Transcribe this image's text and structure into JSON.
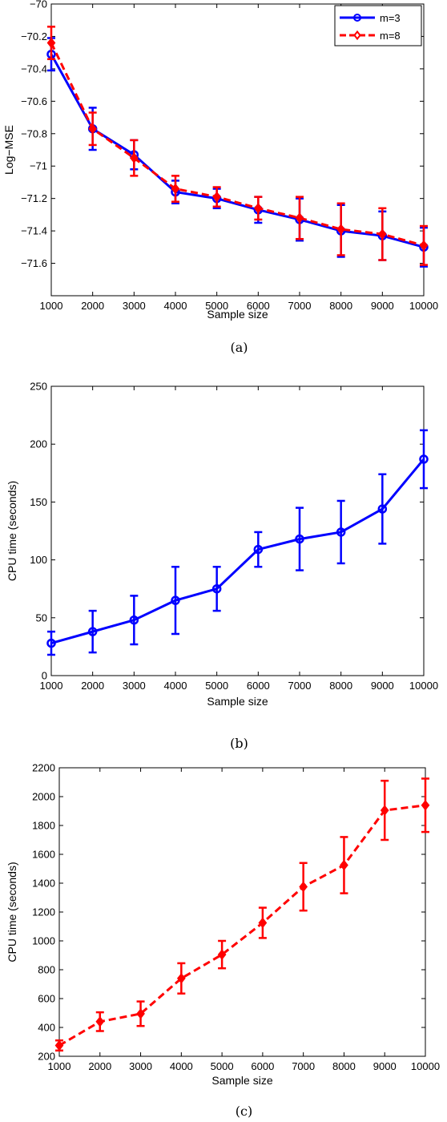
{
  "chart_data": [
    {
      "type": "line",
      "caption": "(a)",
      "xlabel": "Sample size",
      "ylabel": "Log−MSE",
      "xlim": [
        1000,
        10000
      ],
      "ylim": [
        -71.8,
        -70
      ],
      "xticks": [
        1000,
        2000,
        3000,
        4000,
        5000,
        6000,
        7000,
        8000,
        9000,
        10000
      ],
      "yticks": [
        -70,
        -70.2,
        -70.4,
        -70.6,
        -70.8,
        -71,
        -71.2,
        -71.4,
        -71.6
      ],
      "ytick_labels": [
        "−70",
        "−70.2",
        "−70.4",
        "−70.6",
        "−70.8",
        "−71",
        "−71.2",
        "−71.4",
        "−71.6"
      ],
      "grid": false,
      "legend": "top-right",
      "x": [
        1000,
        2000,
        3000,
        4000,
        5000,
        6000,
        7000,
        8000,
        9000,
        10000
      ],
      "series": [
        {
          "name": "m=3",
          "color": "#0000ff",
          "line": "solid",
          "marker": "circle",
          "values": [
            -70.31,
            -70.77,
            -70.93,
            -71.16,
            -71.2,
            -71.27,
            -71.33,
            -71.4,
            -71.43,
            -71.5
          ],
          "errors": [
            0.1,
            0.13,
            0.09,
            0.07,
            0.06,
            0.08,
            0.13,
            0.16,
            0.15,
            0.12
          ]
        },
        {
          "name": "m=8",
          "color": "#ff0000",
          "line": "dashed",
          "marker": "diamond",
          "values": [
            -70.24,
            -70.77,
            -70.95,
            -71.14,
            -71.19,
            -71.26,
            -71.32,
            -71.39,
            -71.42,
            -71.49
          ],
          "errors": [
            0.1,
            0.1,
            0.11,
            0.08,
            0.06,
            0.07,
            0.13,
            0.16,
            0.16,
            0.12
          ]
        }
      ]
    },
    {
      "type": "line",
      "caption": "(b)",
      "xlabel": "Sample size",
      "ylabel": "CPU time (seconds)",
      "xlim": [
        1000,
        10000
      ],
      "ylim": [
        0,
        250
      ],
      "xticks": [
        1000,
        2000,
        3000,
        4000,
        5000,
        6000,
        7000,
        8000,
        9000,
        10000
      ],
      "yticks": [
        0,
        50,
        100,
        150,
        200,
        250
      ],
      "grid": false,
      "x": [
        1000,
        2000,
        3000,
        4000,
        5000,
        6000,
        7000,
        8000,
        9000,
        10000
      ],
      "series": [
        {
          "color": "#0000ff",
          "line": "solid",
          "marker": "circle",
          "values": [
            28,
            38,
            48,
            65,
            75,
            109,
            118,
            124,
            144,
            187
          ],
          "errors": [
            10,
            18,
            21,
            29,
            19,
            15,
            27,
            27,
            30,
            25
          ]
        }
      ]
    },
    {
      "type": "line",
      "caption": "(c)",
      "xlabel": "Sample size",
      "ylabel": "CPU time (seconds)",
      "xlim": [
        1000,
        10000
      ],
      "ylim": [
        200,
        2200
      ],
      "xticks": [
        1000,
        2000,
        3000,
        4000,
        5000,
        6000,
        7000,
        8000,
        9000,
        10000
      ],
      "yticks": [
        200,
        400,
        600,
        800,
        1000,
        1200,
        1400,
        1600,
        1800,
        2000,
        2200
      ],
      "grid": false,
      "x": [
        1000,
        2000,
        3000,
        4000,
        5000,
        6000,
        7000,
        8000,
        9000,
        10000
      ],
      "series": [
        {
          "color": "#ff0000",
          "line": "dashed",
          "marker": "diamond",
          "values": [
            275,
            440,
            495,
            740,
            905,
            1125,
            1375,
            1525,
            1905,
            1940
          ],
          "errors": [
            35,
            65,
            85,
            105,
            95,
            105,
            165,
            195,
            205,
            185
          ]
        }
      ]
    }
  ]
}
